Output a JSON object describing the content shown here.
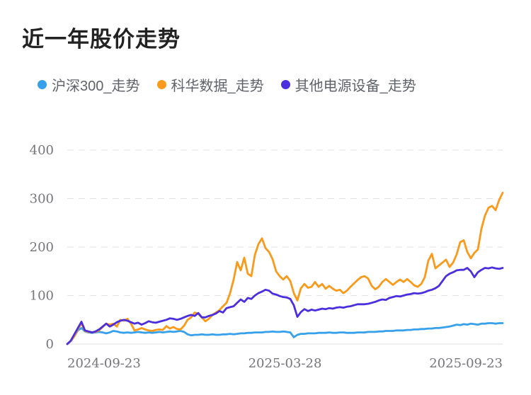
{
  "title": "近一年股价走势",
  "colors": {
    "title_text": "#222222",
    "legend_text": "#5f6369",
    "tick_text": "#76767b",
    "grid_line": "#e2e2e6",
    "axis_line": "#dfdfe3",
    "background": "#ffffff"
  },
  "chart_data": {
    "type": "line",
    "title": "近一年股价走势",
    "xlabel": "",
    "ylabel": "",
    "x_tick_labels": [
      "2024-09-23",
      "2025-03-28",
      "2025-09-23"
    ],
    "y_ticks": [
      0,
      100,
      200,
      300,
      400
    ],
    "ylim": [
      0,
      400
    ],
    "grid": "horizontal-dashed",
    "legend_position": "top",
    "grid_color": "#e2e2e6",
    "axis_line_color": "#dfdfe3",
    "series": [
      {
        "name": "沪深300_走势",
        "color": "#36a0ea",
        "values": [
          0,
          6,
          16,
          28,
          33,
          26,
          24,
          23,
          24,
          25,
          24,
          22,
          24,
          27,
          26,
          24,
          23,
          24,
          23,
          24,
          25,
          24,
          23,
          24,
          23,
          24,
          25,
          24,
          25,
          26,
          25,
          26,
          27,
          25,
          20,
          18,
          19,
          19,
          20,
          19,
          19,
          20,
          19,
          19,
          20,
          20,
          21,
          20,
          21,
          22,
          22,
          23,
          23,
          24,
          24,
          24,
          25,
          25,
          26,
          25,
          25,
          26,
          25,
          24,
          14,
          19,
          21,
          21,
          22,
          22,
          22,
          23,
          23,
          23,
          24,
          23,
          23,
          24,
          24,
          23,
          23,
          23,
          24,
          24,
          24,
          25,
          25,
          25,
          26,
          26,
          27,
          27,
          27,
          28,
          28,
          28,
          29,
          29,
          30,
          30,
          31,
          31,
          32,
          32,
          33,
          33,
          34,
          35,
          36,
          38,
          40,
          39,
          41,
          40,
          42,
          41,
          40,
          42,
          42,
          43,
          43,
          42,
          43,
          43
        ]
      },
      {
        "name": "科华数据_走势",
        "color": "#fa9a1b",
        "values": [
          0,
          6,
          16,
          30,
          43,
          27,
          25,
          24,
          25,
          28,
          35,
          42,
          40,
          42,
          36,
          50,
          48,
          52,
          42,
          28,
          30,
          33,
          30,
          28,
          27,
          29,
          30,
          29,
          37,
          32,
          35,
          31,
          30,
          38,
          50,
          55,
          65,
          62,
          55,
          47,
          52,
          60,
          65,
          70,
          78,
          85,
          105,
          133,
          169,
          152,
          178,
          145,
          140,
          184,
          206,
          218,
          198,
          190,
          175,
          150,
          140,
          133,
          140,
          130,
          105,
          90,
          115,
          124,
          116,
          118,
          128,
          118,
          124,
          114,
          120,
          114,
          110,
          112,
          105,
          110,
          118,
          125,
          132,
          138,
          140,
          135,
          120,
          113,
          118,
          128,
          134,
          128,
          122,
          128,
          133,
          128,
          134,
          128,
          121,
          118,
          124,
          138,
          172,
          186,
          156,
          162,
          168,
          174,
          159,
          168,
          185,
          210,
          214,
          190,
          177,
          188,
          195,
          238,
          265,
          281,
          285,
          276,
          297,
          312
        ]
      },
      {
        "name": "其他电源设备_走势",
        "color": "#4b2edd",
        "values": [
          0,
          7,
          20,
          33,
          46,
          28,
          26,
          24,
          26,
          30,
          36,
          42,
          36,
          40,
          45,
          48,
          50,
          48,
          45,
          42,
          44,
          40,
          43,
          47,
          45,
          44,
          46,
          48,
          50,
          53,
          52,
          50,
          52,
          55,
          58,
          60,
          58,
          64,
          55,
          55,
          58,
          60,
          63,
          68,
          65,
          74,
          76,
          78,
          85,
          92,
          87,
          95,
          93,
          100,
          105,
          108,
          112,
          110,
          104,
          102,
          99,
          97,
          96,
          93,
          80,
          56,
          66,
          72,
          68,
          71,
          69,
          71,
          73,
          72,
          74,
          73,
          75,
          76,
          75,
          77,
          78,
          80,
          82,
          82,
          82,
          83,
          85,
          87,
          90,
          92,
          91,
          95,
          97,
          99,
          98,
          100,
          102,
          103,
          105,
          104,
          105,
          107,
          110,
          112,
          115,
          120,
          130,
          140,
          145,
          148,
          152,
          153,
          153,
          157,
          150,
          138,
          148,
          153,
          157,
          156,
          158,
          156,
          155,
          157
        ]
      }
    ]
  }
}
